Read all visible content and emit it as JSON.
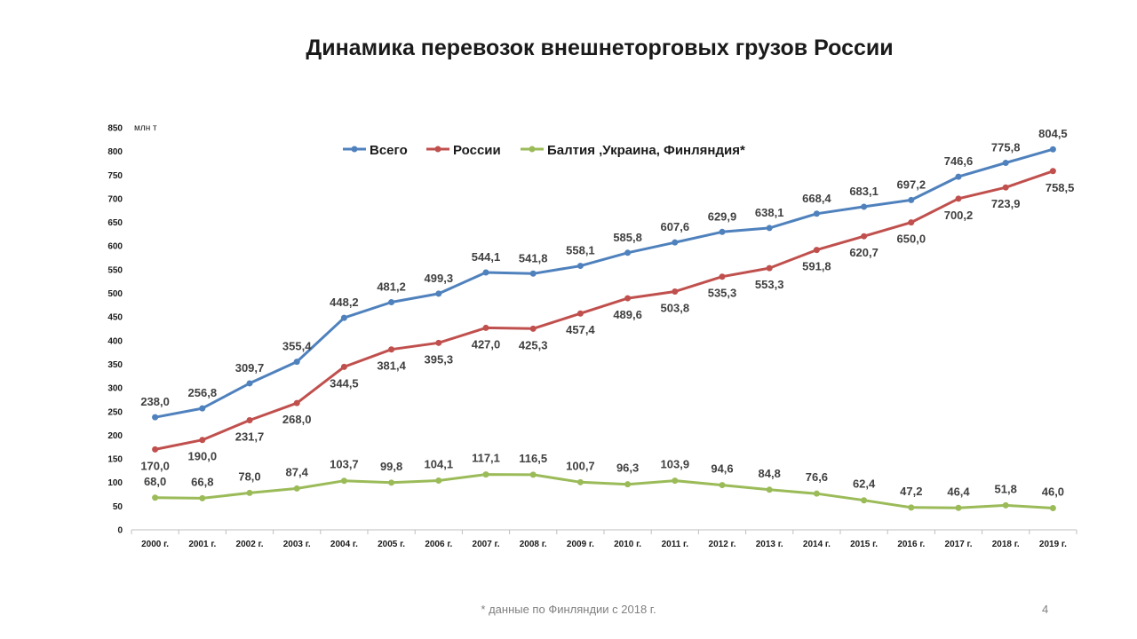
{
  "title": "Динамика перевозок внешнеторговых грузов России",
  "footnote": "* данные по Финляндии с 2018 г.",
  "page_number": "4",
  "chart_data": {
    "type": "line",
    "title": "Динамика перевозок внешнеторговых грузов России",
    "ylabel": "млн т",
    "xlabel": "",
    "ylim": [
      0,
      850
    ],
    "yticks": [
      0,
      50,
      100,
      150,
      200,
      250,
      300,
      350,
      400,
      450,
      500,
      550,
      600,
      650,
      700,
      750,
      800,
      850
    ],
    "categories": [
      "2000 г.",
      "2001 г.",
      "2002 г.",
      "2003 г.",
      "2004 г.",
      "2005 г.",
      "2006 г.",
      "2007 г.",
      "2008 г.",
      "2009 г.",
      "2010 г.",
      "2011 г.",
      "2012 г.",
      "2013 г.",
      "2014 г.",
      "2015 г.",
      "2016 г.",
      "2017 г.",
      "2018 г.",
      "2019 г."
    ],
    "legend_position": "top",
    "grid": false,
    "series": [
      {
        "name": "Всего",
        "color": "#4f81bd",
        "values": [
          238.0,
          256.8,
          309.7,
          355.4,
          448.2,
          481.2,
          499.3,
          544.1,
          541.8,
          558.1,
          585.8,
          607.6,
          629.9,
          638.1,
          668.4,
          683.1,
          697.2,
          746.6,
          775.8,
          804.5
        ],
        "labels": [
          "238,0",
          "256,8",
          "309,7",
          "355,4",
          "448,2",
          "481,2",
          "499,3",
          "544,1",
          "541,8",
          "558,1",
          "585,8",
          "607,6",
          "629,9",
          "638,1",
          "668,4",
          "683,1",
          "697,2",
          "746,6",
          "775,8",
          "804,5"
        ]
      },
      {
        "name": "России",
        "color": "#c0504d",
        "values": [
          170.0,
          190.0,
          231.7,
          268.0,
          344.5,
          381.4,
          395.3,
          427.0,
          425.3,
          457.4,
          489.6,
          503.8,
          535.3,
          553.3,
          591.8,
          620.7,
          650.0,
          700.2,
          723.9,
          758.5
        ],
        "labels": [
          "170,0",
          "190,0",
          "231,7",
          "268,0",
          "344,5",
          "381,4",
          "395,3",
          "427,0",
          "425,3",
          "457,4",
          "489,6",
          "503,8",
          "535,3",
          "553,3",
          "591,8",
          "620,7",
          "650,0",
          "700,2",
          "723,9",
          "758,5"
        ]
      },
      {
        "name": "Балтия ,Украина, Финляндия*",
        "color": "#9bbb59",
        "values": [
          68.0,
          66.8,
          78.0,
          87.4,
          103.7,
          99.8,
          104.1,
          117.1,
          116.5,
          100.7,
          96.3,
          103.9,
          94.6,
          84.8,
          76.6,
          62.4,
          47.2,
          46.4,
          51.8,
          46.0
        ],
        "labels": [
          "68,0",
          "66,8",
          "78,0",
          "87,4",
          "103,7",
          "99,8",
          "104,1",
          "117,1",
          "116,5",
          "100,7",
          "96,3",
          "103,9",
          "94,6",
          "84,8",
          "76,6",
          "62,4",
          "47,2",
          "46,4",
          "51,8",
          "46,0"
        ]
      }
    ]
  }
}
